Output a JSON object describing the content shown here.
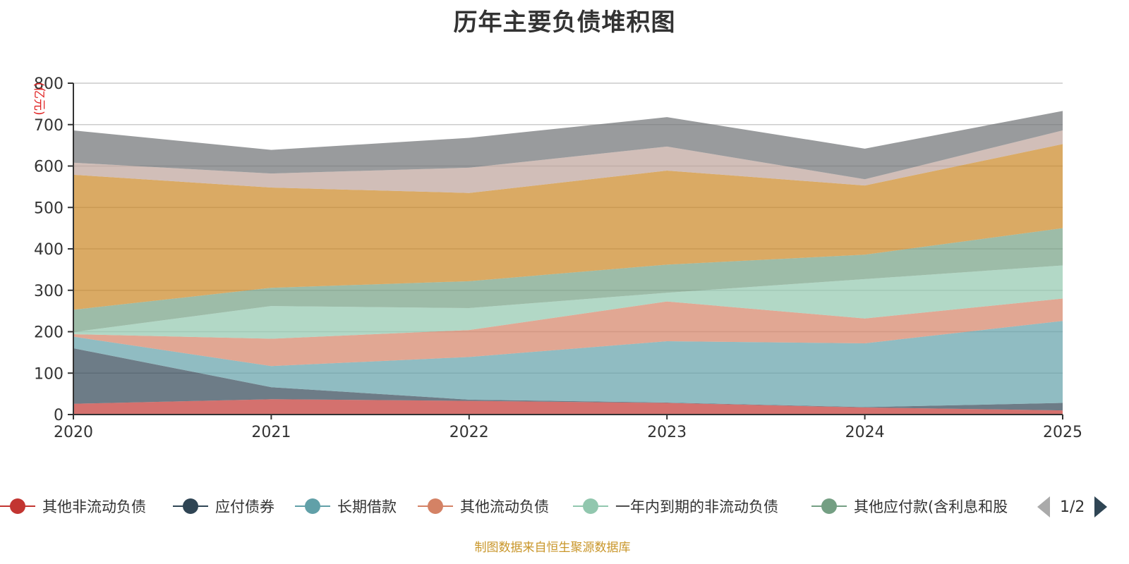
{
  "title": "历年主要负债堆积图",
  "footer": "制图数据来自恒生聚源数据库",
  "legend": {
    "items": [
      {
        "label": "其他非流动负债",
        "color": "#c23531"
      },
      {
        "label": "应付债券",
        "color": "#2f4554"
      },
      {
        "label": "长期借款",
        "color": "#61a0a8"
      },
      {
        "label": "其他流动负债",
        "color": "#d48265"
      },
      {
        "label": "一年内到期的非流动负债",
        "color": "#91c7ae"
      },
      {
        "label": "其他应付款(含利息和股",
        "color": "#749f83"
      }
    ],
    "page": "1/2"
  },
  "chart_data": {
    "type": "area",
    "stacked": true,
    "title": "历年主要负债堆积图",
    "xlabel": "",
    "ylabel": "(亿元)",
    "categories": [
      "2020",
      "2021",
      "2022",
      "2023",
      "2024",
      "2025"
    ],
    "y_ticks": [
      "0",
      "100",
      "200",
      "300",
      "400",
      "500",
      "600",
      "700",
      "800"
    ],
    "ylim": [
      0,
      800
    ],
    "grid": true,
    "legend_position": "bottom",
    "series": [
      {
        "name": "其他非流动负债",
        "color": "#c23531",
        "values": [
          26,
          37,
          33,
          28,
          17,
          10
        ]
      },
      {
        "name": "应付债券",
        "color": "#2f4554",
        "values": [
          134,
          29,
          3,
          1,
          1,
          18
        ]
      },
      {
        "name": "长期借款",
        "color": "#61a0a8",
        "values": [
          28,
          51,
          103,
          148,
          154,
          198
        ]
      },
      {
        "name": "其他流动负债",
        "color": "#d48265",
        "values": [
          6,
          66,
          65,
          96,
          60,
          54
        ]
      },
      {
        "name": "一年内到期的非流动负债",
        "color": "#91c7ae",
        "values": [
          5,
          79,
          53,
          21,
          95,
          80
        ]
      },
      {
        "name": "其他应付款(含利息和股",
        "color": "#749f83",
        "values": [
          54,
          44,
          65,
          68,
          59,
          90
        ]
      },
      {
        "name": "",
        "color": "#ca8622",
        "values": [
          326,
          242,
          213,
          227,
          167,
          203
        ]
      },
      {
        "name": "",
        "color": "#bda29a",
        "values": [
          29,
          34,
          61,
          58,
          15,
          33
        ]
      },
      {
        "name": "",
        "color": "#6e7074",
        "values": [
          78,
          57,
          72,
          71,
          74,
          47
        ]
      }
    ]
  }
}
